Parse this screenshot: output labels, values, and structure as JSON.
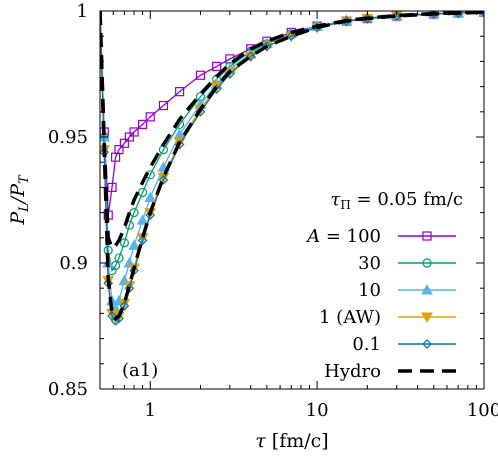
{
  "chart_data": {
    "type": "line",
    "panel_label": "(a1)",
    "annotation": "τ_Π = 0.05 fm/c",
    "annotation_parts": {
      "symbol": "τ",
      "subscript": "Π",
      "rest": " = 0.05 fm/c"
    },
    "xlabel": "τ [fm/c]",
    "ylabel": "P_L/P_T",
    "xlabel_parts": {
      "symbol": "τ",
      "rest": " [fm/c]"
    },
    "ylabel_parts": {
      "a": "P",
      "a_sub": "L",
      "b": "/P",
      "b_sub": "T"
    },
    "xscale": "log",
    "xlim": [
      0.5,
      100
    ],
    "ylim": [
      0.85,
      1.0
    ],
    "x_ticks": [
      {
        "value": 1,
        "label": "1"
      },
      {
        "value": 10,
        "label": "10"
      },
      {
        "value": 100,
        "label": "100"
      }
    ],
    "y_ticks": [
      {
        "value": 0.85,
        "label": "0.85"
      },
      {
        "value": 0.9,
        "label": "0.9"
      },
      {
        "value": 0.95,
        "label": "0.95"
      },
      {
        "value": 1.0,
        "label": "1"
      }
    ],
    "grid": false,
    "legend_position": "bottom-right",
    "series": [
      {
        "name": "A = 100",
        "color": "#9400d3",
        "marker": "square",
        "x": [
          0.5,
          0.53,
          0.56,
          0.59,
          0.62,
          0.65,
          0.7,
          0.75,
          0.8,
          0.9,
          1.0,
          1.2,
          1.5,
          2.0,
          2.5,
          3.0,
          4.0,
          5.0,
          7.0,
          10,
          15,
          20,
          30,
          50,
          70,
          100
        ],
        "y": [
          1.0,
          0.952,
          0.919,
          0.93,
          0.942,
          0.945,
          0.9475,
          0.95,
          0.952,
          0.955,
          0.958,
          0.9625,
          0.968,
          0.9745,
          0.978,
          0.981,
          0.985,
          0.988,
          0.9915,
          0.994,
          0.996,
          0.997,
          0.998,
          0.9988,
          0.9992,
          0.9995
        ]
      },
      {
        "name": "30",
        "color": "#009e73",
        "marker": "circle",
        "x": [
          0.5,
          0.53,
          0.56,
          0.59,
          0.62,
          0.65,
          0.7,
          0.75,
          0.8,
          0.9,
          1.0,
          1.2,
          1.5,
          2.0,
          2.5,
          3.0,
          4.0,
          5.0,
          7.0,
          10,
          15,
          20,
          30,
          50,
          70,
          100
        ],
        "y": [
          1.0,
          0.95,
          0.905,
          0.897,
          0.899,
          0.902,
          0.908,
          0.915,
          0.92,
          0.928,
          0.935,
          0.945,
          0.955,
          0.966,
          0.973,
          0.978,
          0.984,
          0.987,
          0.991,
          0.994,
          0.9962,
          0.9972,
          0.9982,
          0.999,
          0.9993,
          0.9996
        ]
      },
      {
        "name": "10",
        "color": "#56b4e9",
        "marker": "triangle-up",
        "x": [
          0.5,
          0.53,
          0.56,
          0.59,
          0.62,
          0.65,
          0.7,
          0.75,
          0.8,
          0.9,
          1.0,
          1.2,
          1.5,
          2.0,
          2.5,
          3.0,
          4.0,
          5.0,
          7.0,
          10,
          15,
          20,
          30,
          50,
          70,
          100
        ],
        "y": [
          1.0,
          0.95,
          0.9,
          0.885,
          0.882,
          0.885,
          0.893,
          0.9,
          0.907,
          0.917,
          0.926,
          0.938,
          0.951,
          0.963,
          0.971,
          0.977,
          0.983,
          0.987,
          0.991,
          0.994,
          0.9962,
          0.9972,
          0.9982,
          0.999,
          0.9993,
          0.9996
        ]
      },
      {
        "name": "1 (AW)",
        "color": "#e69f00",
        "marker": "triangle-down",
        "x": [
          0.5,
          0.53,
          0.56,
          0.59,
          0.62,
          0.65,
          0.7,
          0.75,
          0.8,
          0.9,
          1.0,
          1.2,
          1.5,
          2.0,
          2.5,
          3.0,
          4.0,
          5.0,
          7.0,
          10,
          15,
          20,
          30,
          50,
          70,
          100
        ],
        "y": [
          1.0,
          0.945,
          0.893,
          0.88,
          0.878,
          0.879,
          0.884,
          0.891,
          0.898,
          0.91,
          0.92,
          0.934,
          0.948,
          0.961,
          0.97,
          0.976,
          0.982,
          0.986,
          0.99,
          0.9935,
          0.996,
          0.997,
          0.998,
          0.9988,
          0.9992,
          0.9995
        ]
      },
      {
        "name": "0.1",
        "color": "#0072b2",
        "marker": "diamond",
        "x": [
          0.5,
          0.53,
          0.56,
          0.59,
          0.62,
          0.65,
          0.7,
          0.75,
          0.8,
          0.9,
          1.0,
          1.2,
          1.5,
          2.0,
          2.5,
          3.0,
          4.0,
          5.0,
          7.0,
          10,
          15,
          20,
          30,
          50,
          70,
          100
        ],
        "y": [
          1.0,
          0.944,
          0.892,
          0.879,
          0.877,
          0.878,
          0.883,
          0.89,
          0.897,
          0.909,
          0.919,
          0.933,
          0.947,
          0.96,
          0.969,
          0.975,
          0.982,
          0.986,
          0.99,
          0.9935,
          0.996,
          0.997,
          0.998,
          0.9988,
          0.9992,
          0.9995
        ]
      },
      {
        "name": "Hydro",
        "color": "#000000",
        "marker": "none",
        "dashed": true,
        "x_note": "dashed black curves overlaying each kinetic curve",
        "curves": [
          {
            "x": [
              0.5,
              0.53,
              0.56,
              0.59,
              0.62,
              0.65,
              0.7,
              0.75,
              0.8,
              0.9,
              1.0,
              1.2,
              1.5,
              2.0,
              2.5,
              3.0,
              4.0,
              5.0,
              7.0,
              10,
              15,
              20,
              30,
              50,
              70,
              100
            ],
            "y": [
              1.0,
              0.948,
              0.91,
              0.906,
              0.907,
              0.909,
              0.914,
              0.92,
              0.925,
              0.932,
              0.938,
              0.947,
              0.957,
              0.967,
              0.974,
              0.979,
              0.985,
              0.988,
              0.9915,
              0.994,
              0.9962,
              0.9972,
              0.9982,
              0.999,
              0.9993,
              0.9996
            ]
          },
          {
            "x": [
              0.5,
              0.53,
              0.56,
              0.59,
              0.62,
              0.65,
              0.7,
              0.75,
              0.8,
              0.9,
              1.0,
              1.2,
              1.5,
              2.0,
              2.5,
              3.0,
              4.0,
              5.0,
              7.0,
              10,
              15,
              20,
              30,
              50,
              70,
              100
            ],
            "y": [
              1.0,
              0.945,
              0.894,
              0.88,
              0.878,
              0.879,
              0.884,
              0.891,
              0.898,
              0.91,
              0.92,
              0.934,
              0.948,
              0.961,
              0.97,
              0.976,
              0.982,
              0.986,
              0.99,
              0.9935,
              0.996,
              0.997,
              0.998,
              0.9988,
              0.9992,
              0.9995
            ]
          }
        ]
      }
    ]
  }
}
